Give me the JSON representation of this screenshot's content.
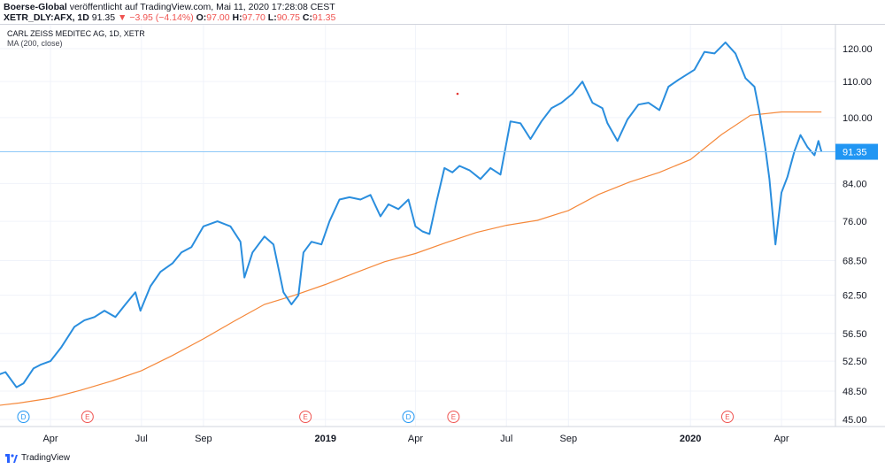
{
  "header": {
    "publisher": "Boerse-Global",
    "published_text": "veröffentlicht auf TradingView.com, Mai 11, 2020 17:28:08 CEST",
    "symbol": "XETR_DLY:AFX, 1D",
    "last": "91.35",
    "change_arrow": "▼",
    "change": "−3.95 (−4.14%)",
    "o_label": "O:",
    "o_value": "97.00",
    "h_label": "H:",
    "h_value": "97.70",
    "l_label": "L:",
    "l_value": "90.75",
    "c_label": "C:",
    "c_value": "91.35"
  },
  "legend": {
    "title": "CARL ZEISS MEDITEC AG, 1D, XETR",
    "indicator": "MA (200, close)"
  },
  "footer": {
    "brand": "TradingView"
  },
  "colors": {
    "price": "#2a8ede",
    "ma": "#f5883a",
    "price_line": "#8ec8f8",
    "last_label_bg": "#2196f3",
    "event_d": "#2196f3",
    "event_e": "#ef5350",
    "grid": "#f0f3fa"
  },
  "chart_data": {
    "type": "line",
    "y_ticks": [
      45.0,
      48.5,
      52.5,
      56.5,
      62.5,
      68.5,
      76.0,
      84.0,
      91.35,
      100.0,
      110.0,
      120.0
    ],
    "y_tick_labels": [
      "45.00",
      "48.50",
      "52.50",
      "56.50",
      "62.50",
      "68.50",
      "76.00",
      "84.00",
      "91.35",
      "100.00",
      "110.00",
      "120.00"
    ],
    "x_tick_labels": [
      "Apr",
      "Jul",
      "Sep",
      "2019",
      "Apr",
      "Jul",
      "Sep",
      "2020",
      "Apr"
    ],
    "x_tick_dates": [
      "2018-04-01",
      "2018-07-01",
      "2018-09-01",
      "2019-01-01",
      "2019-04-01",
      "2019-07-01",
      "2019-09-01",
      "2020-01-01",
      "2020-04-01"
    ],
    "events": [
      {
        "date": "2018-03-05",
        "label": "D"
      },
      {
        "date": "2018-05-08",
        "label": "E"
      },
      {
        "date": "2018-12-12",
        "label": "E"
      },
      {
        "date": "2019-03-25",
        "label": "D"
      },
      {
        "date": "2019-05-09",
        "label": "E"
      },
      {
        "date": "2020-02-07",
        "label": "E"
      }
    ],
    "last_value_label": "91.35",
    "series": [
      {
        "name": "CARL ZEISS MEDITEC AG, 1D, XETR",
        "x": [
          "2018-01-25",
          "2018-02-05",
          "2018-02-15",
          "2018-02-26",
          "2018-03-05",
          "2018-03-15",
          "2018-03-22",
          "2018-04-01",
          "2018-04-12",
          "2018-04-25",
          "2018-05-05",
          "2018-05-15",
          "2018-05-25",
          "2018-06-05",
          "2018-06-15",
          "2018-06-25",
          "2018-06-30",
          "2018-07-10",
          "2018-07-20",
          "2018-08-01",
          "2018-08-10",
          "2018-08-20",
          "2018-09-01",
          "2018-09-15",
          "2018-09-28",
          "2018-10-08",
          "2018-10-12",
          "2018-10-20",
          "2018-11-01",
          "2018-11-10",
          "2018-11-20",
          "2018-11-28",
          "2018-12-05",
          "2018-12-10",
          "2018-12-18",
          "2018-12-28",
          "2019-01-05",
          "2019-01-15",
          "2019-01-25",
          "2019-02-05",
          "2019-02-15",
          "2019-02-25",
          "2019-03-05",
          "2019-03-15",
          "2019-03-25",
          "2019-04-01",
          "2019-04-08",
          "2019-04-15",
          "2019-04-22",
          "2019-04-30",
          "2019-05-08",
          "2019-05-15",
          "2019-05-25",
          "2019-06-05",
          "2019-06-15",
          "2019-06-25",
          "2019-07-05",
          "2019-07-15",
          "2019-07-25",
          "2019-08-05",
          "2019-08-15",
          "2019-08-25",
          "2019-09-05",
          "2019-09-15",
          "2019-09-25",
          "2019-10-05",
          "2019-10-10",
          "2019-10-20",
          "2019-10-30",
          "2019-11-10",
          "2019-11-20",
          "2019-12-01",
          "2019-12-10",
          "2019-12-20",
          "2020-01-05",
          "2020-01-15",
          "2020-01-25",
          "2020-02-05",
          "2020-02-15",
          "2020-02-25",
          "2020-03-05",
          "2020-03-10",
          "2020-03-16",
          "2020-03-20",
          "2020-03-26",
          "2020-04-01",
          "2020-04-07",
          "2020-04-14",
          "2020-04-20",
          "2020-04-27",
          "2020-05-04",
          "2020-05-08",
          "2020-05-11"
        ],
        "values": [
          49.5,
          50.5,
          51.0,
          49.0,
          49.5,
          51.5,
          52.0,
          52.5,
          54.5,
          57.5,
          58.5,
          59.0,
          60.0,
          59.0,
          61.0,
          63.0,
          60.0,
          64.0,
          66.5,
          68.0,
          70.0,
          71.0,
          75.0,
          76.0,
          75.0,
          72.0,
          65.5,
          70.0,
          73.0,
          71.5,
          63.0,
          61.0,
          62.5,
          70.0,
          72.0,
          71.5,
          76.0,
          80.5,
          81.0,
          80.5,
          81.5,
          77.0,
          79.5,
          78.5,
          80.5,
          75.0,
          74.0,
          73.5,
          80.0,
          87.5,
          86.5,
          88.0,
          87.0,
          85.0,
          87.5,
          86.0,
          99.0,
          98.5,
          94.5,
          99.0,
          102.5,
          104.0,
          106.5,
          110.0,
          104.0,
          102.5,
          98.5,
          94.0,
          99.5,
          103.5,
          104.0,
          102.0,
          108.5,
          110.5,
          113.5,
          119.0,
          118.5,
          122.0,
          118.5,
          111.0,
          108.5,
          101.5,
          92.0,
          85.0,
          71.5,
          82.0,
          85.5,
          91.5,
          95.5,
          92.5,
          90.5,
          94.0,
          91.35
        ]
      },
      {
        "name": "MA (200, close)",
        "x": [
          "2018-01-25",
          "2018-03-01",
          "2018-04-01",
          "2018-05-01",
          "2018-06-01",
          "2018-07-01",
          "2018-08-01",
          "2018-09-01",
          "2018-10-01",
          "2018-11-01",
          "2018-12-01",
          "2019-01-01",
          "2019-02-01",
          "2019-03-01",
          "2019-04-01",
          "2019-05-01",
          "2019-06-01",
          "2019-07-01",
          "2019-08-01",
          "2019-09-01",
          "2019-10-01",
          "2019-11-01",
          "2019-12-01",
          "2020-01-01",
          "2020-02-01",
          "2020-03-01",
          "2020-04-01",
          "2020-05-11"
        ],
        "values": [
          46.5,
          47.0,
          47.6,
          48.6,
          49.8,
          51.2,
          53.3,
          55.7,
          58.3,
          61.0,
          62.5,
          64.3,
          66.4,
          68.3,
          69.8,
          71.8,
          73.8,
          75.2,
          76.2,
          78.2,
          81.6,
          84.3,
          86.5,
          89.5,
          95.6,
          100.6,
          101.5,
          101.5
        ]
      }
    ]
  }
}
